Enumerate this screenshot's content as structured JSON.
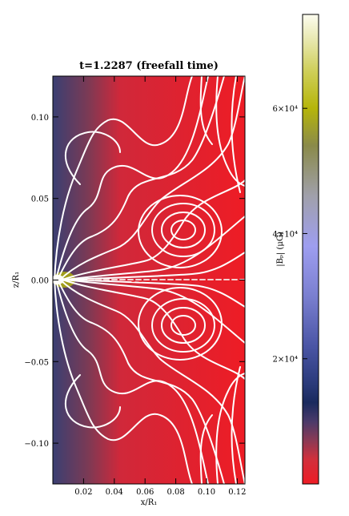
{
  "chart_data": {
    "type": "heatmap",
    "title": "t=1.2287 (freefall time)",
    "xlabel": "x/R₁",
    "ylabel": "z/R₁",
    "xlim": [
      0,
      0.125
    ],
    "ylim": [
      -0.125,
      0.125
    ],
    "x_ticks": [
      0.02,
      0.04,
      0.06,
      0.08,
      0.1,
      0.12
    ],
    "x_tick_labels": [
      "0.02",
      "0.04",
      "0.06",
      "0.08",
      "0.10",
      "0.12"
    ],
    "y_ticks": [
      0.1,
      0.05,
      0.0,
      -0.05,
      -0.1
    ],
    "y_tick_labels": [
      "0.10",
      "0.05",
      "0.00",
      "−0.05",
      "−0.10"
    ],
    "colorbar": {
      "label": "|Bₚ| (μG)",
      "range": [
        0,
        75000
      ],
      "ticks": [
        20000,
        40000,
        60000
      ],
      "tick_labels": [
        "2×10⁴",
        "4×10⁴",
        "6×10⁴"
      ],
      "colormap": [
        {
          "value": 0,
          "color": "#ee1c25"
        },
        {
          "value": 4000,
          "color": "#d0303c"
        },
        {
          "value": 7000,
          "color": "#8a3a55"
        },
        {
          "value": 10000,
          "color": "#4a3a6a"
        },
        {
          "value": 13000,
          "color": "#1a2a5e"
        },
        {
          "value": 16000,
          "color": "#2a3a7a"
        },
        {
          "value": 22000,
          "color": "#4a55a5"
        },
        {
          "value": 30000,
          "color": "#7a7fd0"
        },
        {
          "value": 38000,
          "color": "#9e9ef0"
        },
        {
          "value": 46000,
          "color": "#a0a0ab"
        },
        {
          "value": 54000,
          "color": "#8a8a4a"
        },
        {
          "value": 60000,
          "color": "#b5b50a"
        },
        {
          "value": 66000,
          "color": "#cfcf5a"
        },
        {
          "value": 71000,
          "color": "#e8e8b0"
        },
        {
          "value": 75000,
          "color": "#fdfdf0"
        }
      ]
    },
    "overlay": "white magnetic field lines; closed loops centered near x=0.085, z=±0.03; high-field region near x=0.01, z=0"
  }
}
